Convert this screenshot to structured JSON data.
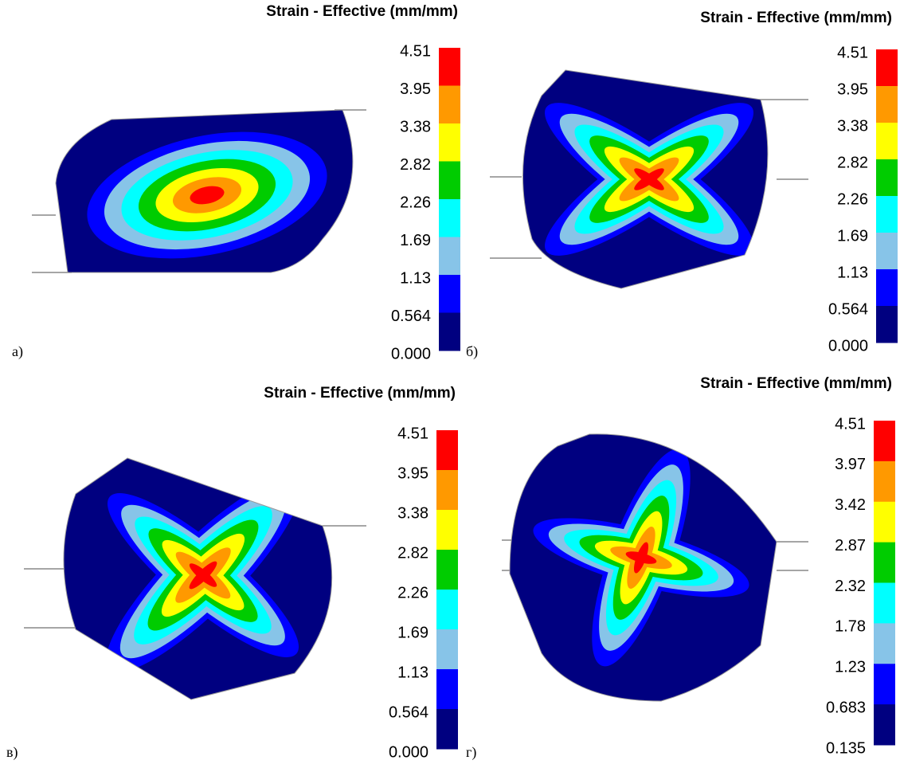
{
  "colors": [
    "#ff0000",
    "#ff9900",
    "#ffff00",
    "#00cc00",
    "#00ffff",
    "#87c4e8",
    "#0000ff",
    "#000080"
  ],
  "panels": [
    {
      "label": "а)",
      "title": "Strain - Effective (mm/mm)",
      "colorbar": {
        "ticks": [
          "4.51",
          "3.95",
          "3.38",
          "2.82",
          "2.26",
          "1.69",
          "1.13",
          "0.564",
          "0.000"
        ]
      }
    },
    {
      "label": "б)",
      "title": "Strain - Effective (mm/mm)",
      "colorbar": {
        "ticks": [
          "4.51",
          "3.95",
          "3.38",
          "2.82",
          "2.26",
          "1.69",
          "1.13",
          "0.564",
          "0.000"
        ]
      }
    },
    {
      "label": "в)",
      "title": "Strain - Effective (mm/mm)",
      "colorbar": {
        "ticks": [
          "4.51",
          "3.95",
          "3.38",
          "2.82",
          "2.26",
          "1.69",
          "1.13",
          "0.564",
          "0.000"
        ]
      }
    },
    {
      "label": "г)",
      "title": "Strain - Effective (mm/mm)",
      "colorbar": {
        "ticks": [
          "4.51",
          "3.97",
          "3.42",
          "2.87",
          "2.32",
          "1.78",
          "1.23",
          "0.683",
          "0.135"
        ]
      }
    }
  ]
}
